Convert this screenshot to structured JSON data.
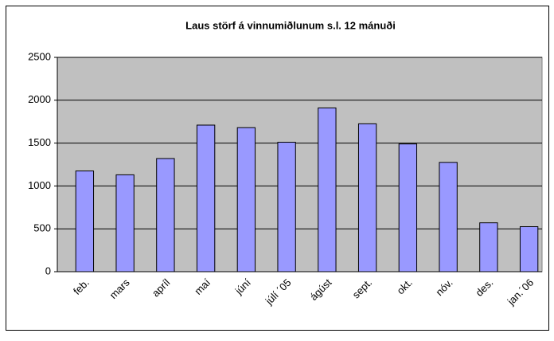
{
  "chart_data": {
    "type": "bar",
    "title": "Laus störf á vinnumiðlunum s.l. 12 mánuði",
    "categories": [
      "feb.",
      "mars",
      "apríl",
      "maí",
      "júní",
      "júlí ´05",
      "ágúst",
      "sept.",
      "okt.",
      "nóv.",
      "des.",
      "jan.´06"
    ],
    "values": [
      1175,
      1130,
      1320,
      1710,
      1680,
      1510,
      1910,
      1725,
      1490,
      1275,
      570,
      525
    ],
    "color": "#9999ff",
    "ylim": [
      0,
      2500
    ],
    "yticks": [
      0,
      500,
      1000,
      1500,
      2000,
      2500
    ],
    "grid": true
  }
}
